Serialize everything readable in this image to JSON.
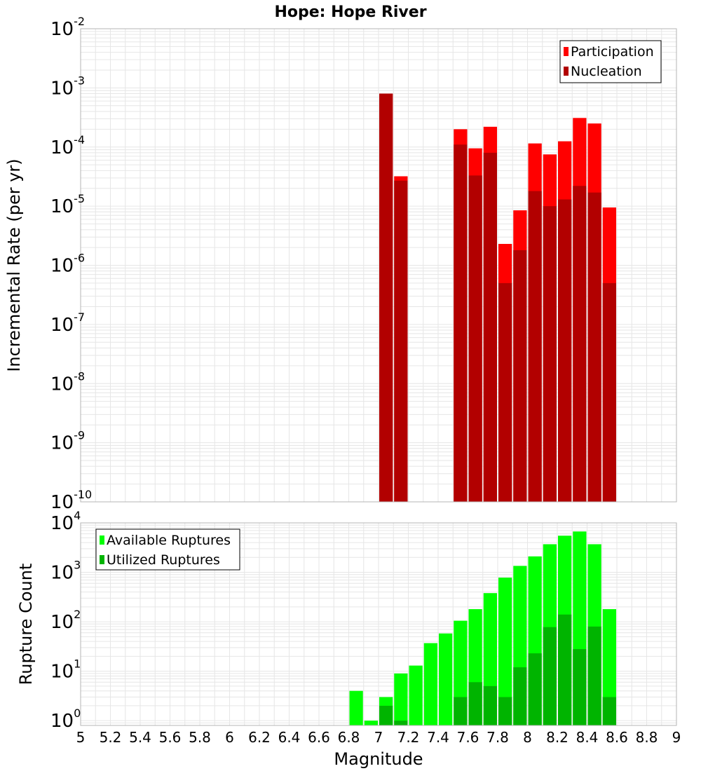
{
  "title": "Hope: Hope River",
  "chart_data": [
    {
      "type": "bar",
      "panel": "top",
      "ylabel": "Incremental Rate (per yr)",
      "xlabel": "",
      "y_scale": "log",
      "ylim": [
        1e-10,
        0.01
      ],
      "xlim": [
        5,
        9
      ],
      "grid": true,
      "legend_position": "top-right",
      "y_tick_exponents": [
        "-10",
        "-9",
        "-8",
        "-7",
        "-6",
        "-5",
        "-4",
        "-3",
        "-2"
      ],
      "x": [
        7.05,
        7.15,
        7.55,
        7.65,
        7.75,
        7.85,
        7.95,
        8.05,
        8.15,
        8.25,
        8.35,
        8.45,
        8.55
      ],
      "series": [
        {
          "name": "Participation",
          "color": "#ff0000",
          "values": [
            0.0008,
            3.2e-05,
            0.0002,
            9.5e-05,
            0.00022,
            2.3e-06,
            8.5e-06,
            0.000115,
            7.5e-05,
            0.000125,
            0.00031,
            0.00025,
            9.5e-06
          ]
        },
        {
          "name": "Nucleation",
          "color": "#b20000",
          "values": [
            0.0008,
            2.7e-05,
            0.00011,
            3.3e-05,
            8e-05,
            5e-07,
            1.8e-06,
            1.8e-05,
            1e-05,
            1.3e-05,
            2.2e-05,
            1.7e-05,
            5e-07
          ]
        }
      ]
    },
    {
      "type": "bar",
      "panel": "bottom",
      "ylabel": "Rupture Count",
      "xlabel": "Magnitude",
      "y_scale": "log",
      "ylim": [
        0.8,
        10000
      ],
      "xlim": [
        5,
        9
      ],
      "grid": true,
      "legend_position": "top-left",
      "y_tick_exponents": [
        "0",
        "1",
        "2",
        "3",
        "4"
      ],
      "x_ticks": [
        "5",
        "5.2",
        "5.4",
        "5.6",
        "5.8",
        "6",
        "6.2",
        "6.4",
        "6.6",
        "6.8",
        "7",
        "7.2",
        "7.4",
        "7.6",
        "7.8",
        "8",
        "8.2",
        "8.4",
        "8.6",
        "8.8",
        "9"
      ],
      "x": [
        6.85,
        6.95,
        7.05,
        7.15,
        7.25,
        7.35,
        7.45,
        7.55,
        7.65,
        7.75,
        7.85,
        7.95,
        8.05,
        8.15,
        8.25,
        8.35,
        8.45,
        8.55
      ],
      "series": [
        {
          "name": "Available Ruptures",
          "color": "#00ff00",
          "values": [
            4,
            1,
            3,
            9,
            13,
            37,
            58,
            105,
            180,
            380,
            780,
            1350,
            2100,
            3700,
            5500,
            6700,
            3700,
            180
          ]
        },
        {
          "name": "Utilized Ruptures",
          "color": "#00b400",
          "values": [
            null,
            null,
            2,
            1,
            null,
            null,
            null,
            3,
            6,
            5,
            3,
            12,
            23,
            78,
            140,
            28,
            80,
            3
          ]
        }
      ]
    }
  ]
}
